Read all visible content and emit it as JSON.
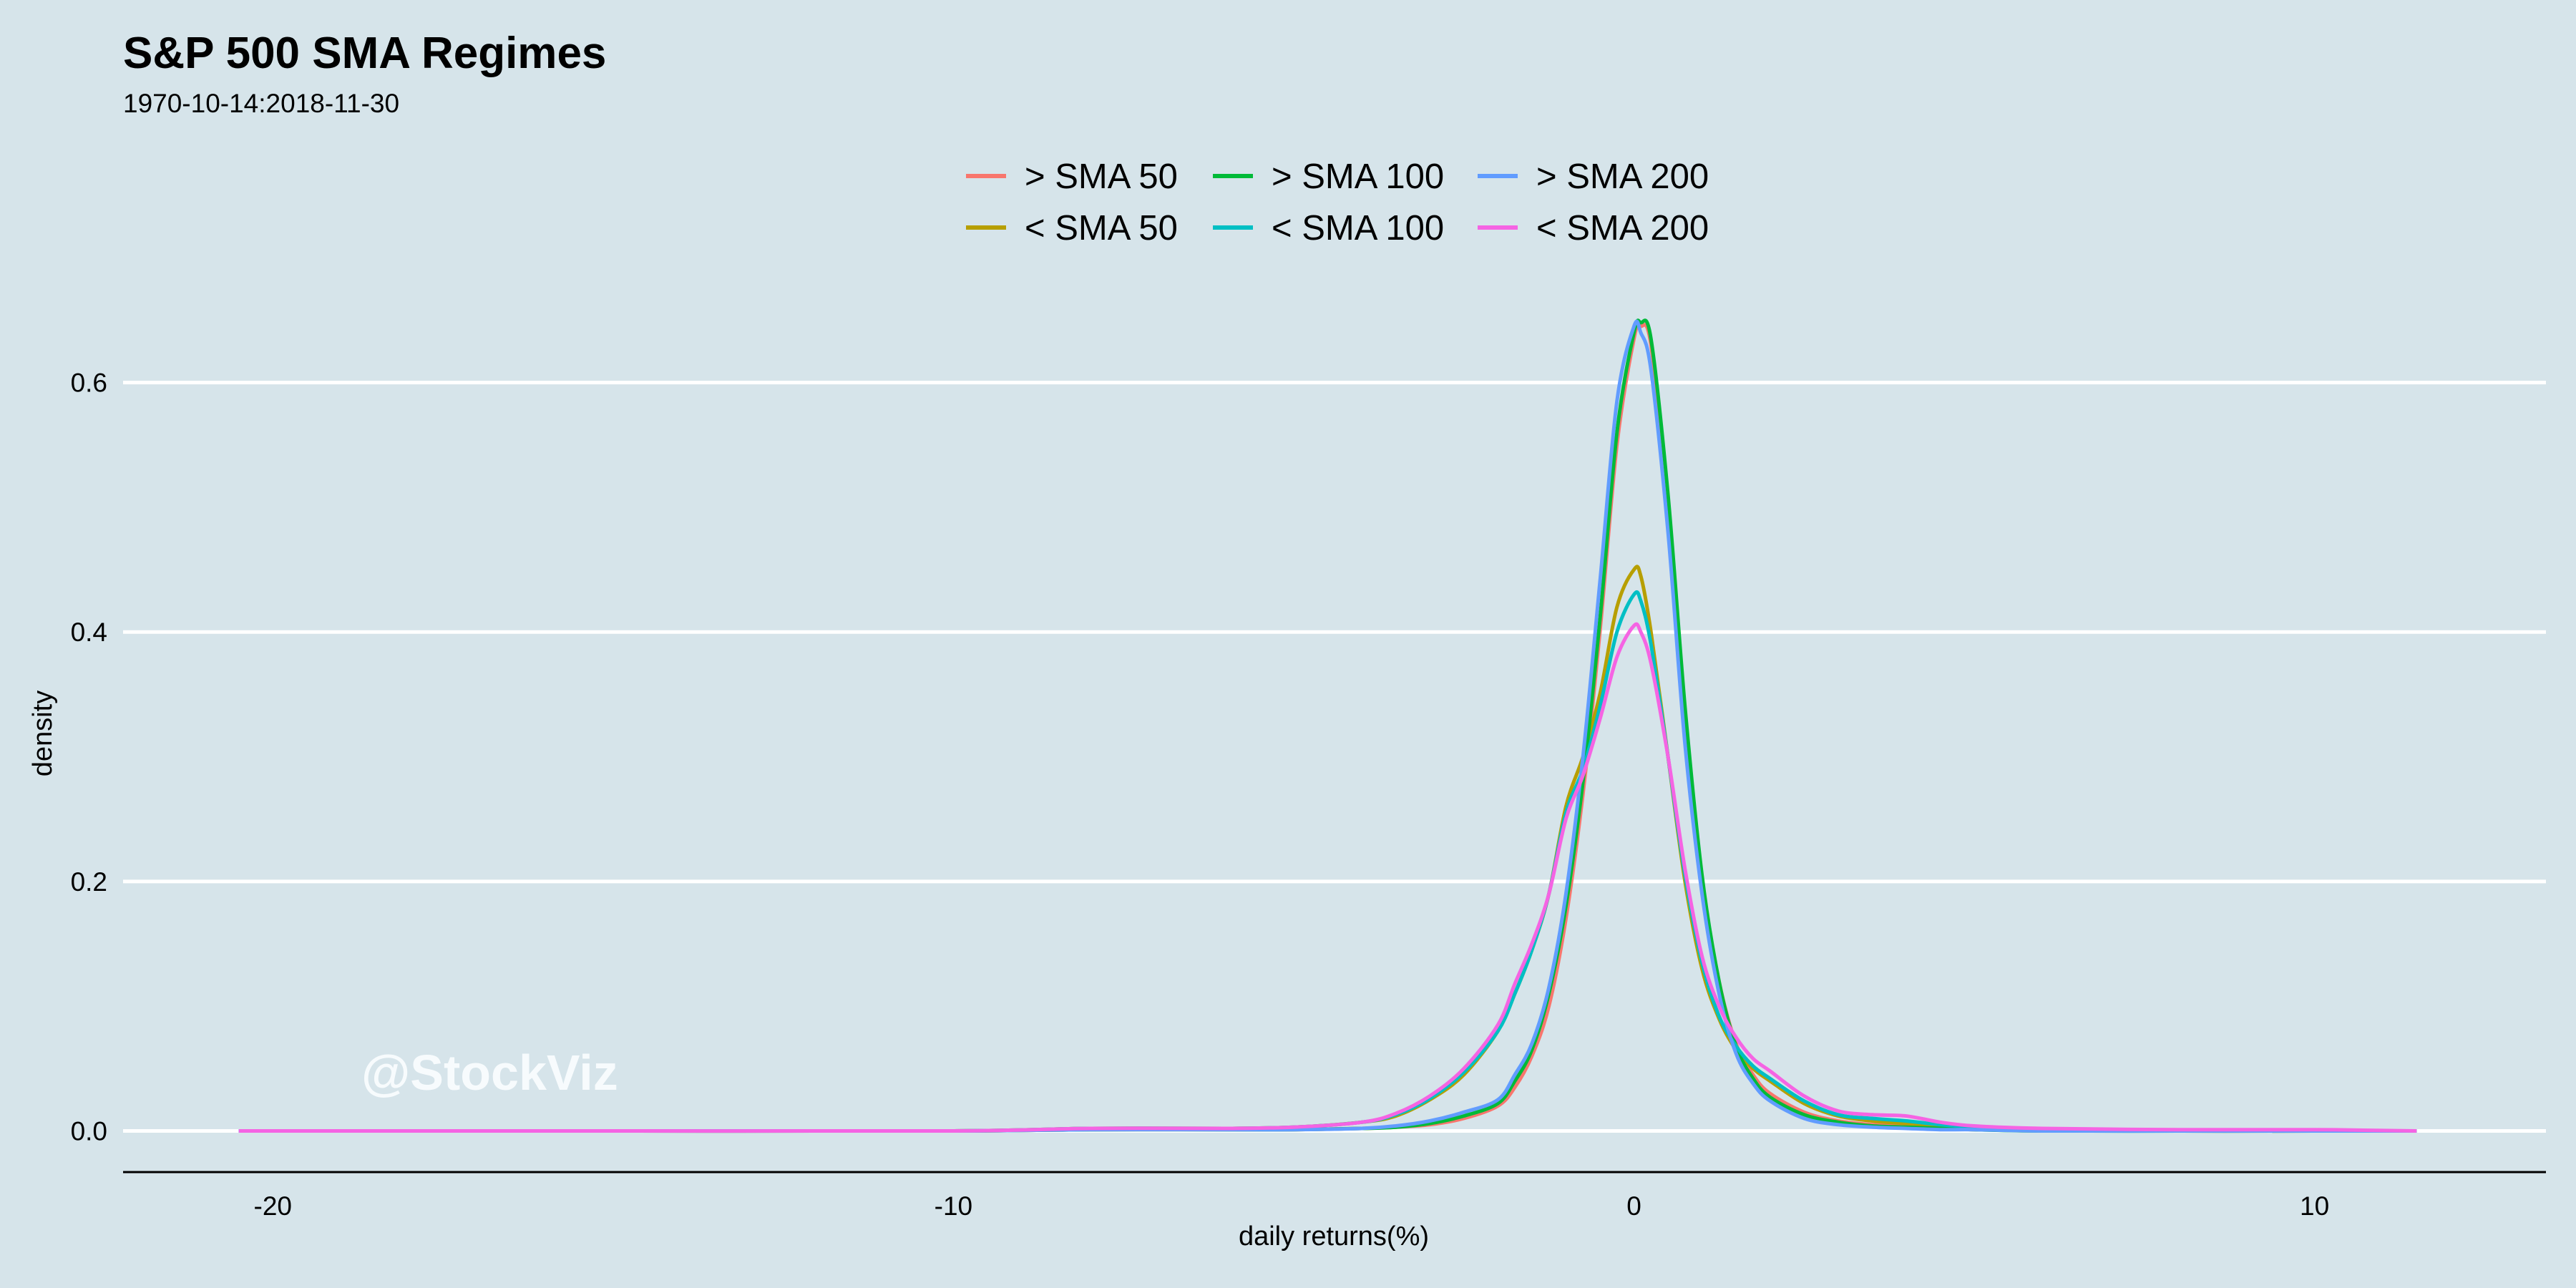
{
  "watermark": "@StockViz",
  "chart_data": {
    "type": "line",
    "title": "S&P 500 SMA Regimes",
    "subtitle": "1970-10-14:2018-11-30",
    "xlabel": "daily returns(%)",
    "ylabel": "density",
    "xlim": [
      -22.2,
      13.4
    ],
    "ylim": [
      -0.033,
      0.66
    ],
    "xticks": [
      -20,
      -10,
      0,
      10
    ],
    "xtick_labels": [
      "-20",
      "-10",
      "0",
      "10"
    ],
    "yticks": [
      0.0,
      0.2,
      0.4,
      0.6
    ],
    "ytick_labels": [
      "0.0",
      "0.2",
      "0.4",
      "0.6"
    ],
    "grid": "horizontal",
    "legend": {
      "placement": "top",
      "columns": 3
    },
    "x": [
      -20.5,
      -15,
      -10,
      -8,
      -6,
      -5,
      -4,
      -3.5,
      -3,
      -2.5,
      -2,
      -1.75,
      -1.5,
      -1.25,
      -1,
      -0.75,
      -0.5,
      -0.25,
      0,
      0.1,
      0.25,
      0.5,
      0.75,
      1,
      1.25,
      1.5,
      1.75,
      2,
      2.5,
      3,
      3.5,
      4,
      4.5,
      5,
      6,
      8,
      10,
      11.5
    ],
    "series": [
      {
        "name": "> SMA 50",
        "color": "#f8766d",
        "values": [
          0,
          0,
          0,
          0.001,
          0.001,
          0.001,
          0.002,
          0.003,
          0.005,
          0.01,
          0.02,
          0.035,
          0.06,
          0.1,
          0.17,
          0.27,
          0.4,
          0.55,
          0.635,
          0.645,
          0.63,
          0.5,
          0.33,
          0.2,
          0.12,
          0.07,
          0.045,
          0.03,
          0.015,
          0.008,
          0.005,
          0.004,
          0.002,
          0.001,
          0.001,
          0,
          0,
          0
        ]
      },
      {
        "name": "< SMA 50",
        "color": "#b79f00",
        "values": [
          0,
          0,
          0,
          0.002,
          0.002,
          0.003,
          0.007,
          0.012,
          0.025,
          0.045,
          0.08,
          0.11,
          0.145,
          0.19,
          0.26,
          0.3,
          0.35,
          0.42,
          0.45,
          0.445,
          0.4,
          0.3,
          0.2,
          0.13,
          0.09,
          0.065,
          0.05,
          0.04,
          0.022,
          0.012,
          0.008,
          0.006,
          0.004,
          0.002,
          0.001,
          0,
          0,
          0
        ]
      },
      {
        "name": "> SMA 100",
        "color": "#00ba38",
        "values": [
          0,
          0,
          0,
          0.001,
          0.001,
          0.001,
          0.002,
          0.003,
          0.006,
          0.012,
          0.022,
          0.04,
          0.065,
          0.11,
          0.18,
          0.28,
          0.41,
          0.56,
          0.64,
          0.648,
          0.635,
          0.51,
          0.34,
          0.205,
          0.12,
          0.068,
          0.042,
          0.027,
          0.013,
          0.007,
          0.004,
          0.003,
          0.002,
          0.001,
          0,
          0,
          0,
          0
        ]
      },
      {
        "name": "< SMA 100",
        "color": "#00bfc4",
        "values": [
          0,
          0,
          0,
          0.002,
          0.002,
          0.003,
          0.007,
          0.013,
          0.026,
          0.047,
          0.08,
          0.11,
          0.145,
          0.19,
          0.255,
          0.29,
          0.34,
          0.4,
          0.43,
          0.425,
          0.39,
          0.3,
          0.205,
          0.135,
          0.092,
          0.068,
          0.052,
          0.042,
          0.024,
          0.013,
          0.01,
          0.008,
          0.005,
          0.003,
          0.001,
          0,
          0,
          0
        ]
      },
      {
        "name": "> SMA 200",
        "color": "#619cff",
        "values": [
          0,
          0,
          0,
          0.001,
          0.001,
          0.001,
          0.002,
          0.004,
          0.008,
          0.015,
          0.025,
          0.045,
          0.07,
          0.115,
          0.19,
          0.3,
          0.44,
          0.585,
          0.645,
          0.64,
          0.61,
          0.48,
          0.31,
          0.19,
          0.11,
          0.062,
          0.038,
          0.024,
          0.01,
          0.005,
          0.003,
          0.002,
          0.001,
          0.001,
          0,
          0,
          0,
          0
        ]
      },
      {
        "name": "< SMA 200",
        "color": "#f564e3",
        "values": [
          0,
          0,
          0,
          0.002,
          0.002,
          0.003,
          0.007,
          0.014,
          0.028,
          0.05,
          0.085,
          0.118,
          0.15,
          0.19,
          0.25,
          0.285,
          0.33,
          0.38,
          0.405,
          0.4,
          0.375,
          0.3,
          0.21,
          0.14,
          0.1,
          0.075,
          0.058,
          0.048,
          0.028,
          0.016,
          0.013,
          0.012,
          0.007,
          0.004,
          0.002,
          0.001,
          0.001,
          0
        ]
      }
    ]
  }
}
